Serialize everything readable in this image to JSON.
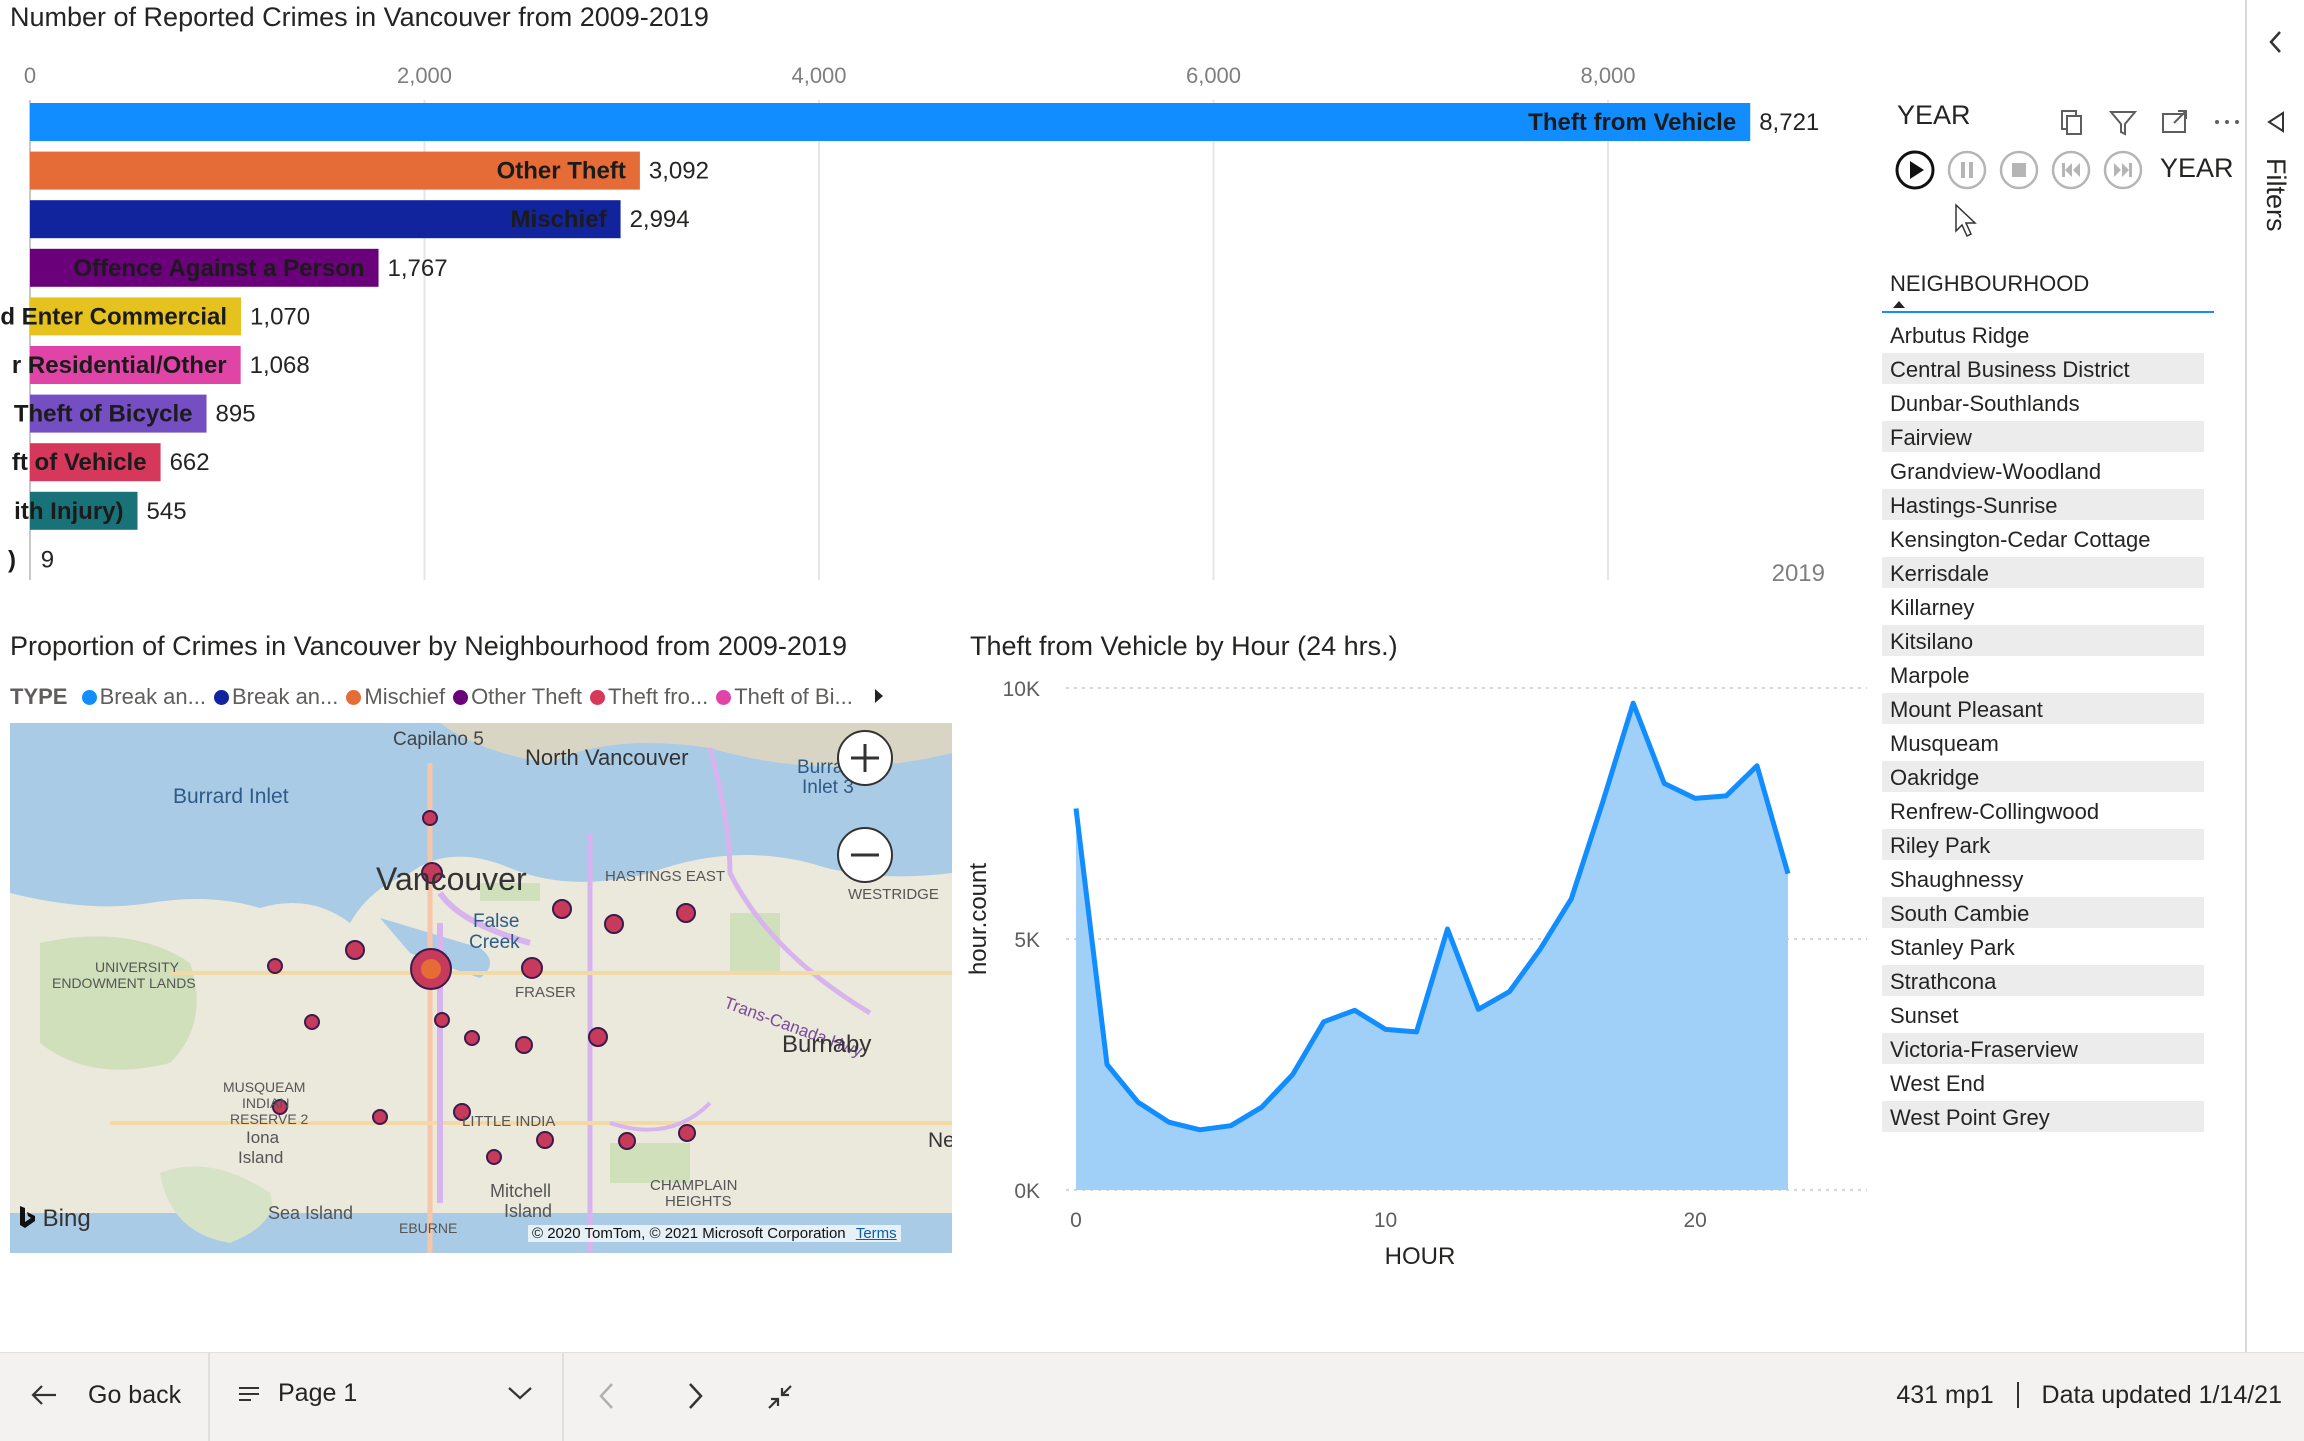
{
  "bar_chart": {
    "title": "Number of Reported Crimes in Vancouver from 2009-2019",
    "year_watermark": "2019",
    "axis_ticks": [
      "0",
      "2,000",
      "4,000",
      "6,000",
      "8,000"
    ]
  },
  "slicer_year": {
    "title": "YEAR",
    "play_label": "YEAR",
    "header_icons": [
      "copy-icon",
      "filter-icon",
      "focus-mode-icon",
      "more-options-icon"
    ],
    "buttons": [
      "play-icon",
      "pause-icon",
      "stop-icon",
      "previous-icon",
      "next-icon"
    ]
  },
  "neighbourhood": {
    "header": "NEIGHBOURHOOD",
    "items": [
      "Arbutus Ridge",
      "Central Business District",
      "Dunbar-Southlands",
      "Fairview",
      "Grandview-Woodland",
      "Hastings-Sunrise",
      "Kensington-Cedar Cottage",
      "Kerrisdale",
      "Killarney",
      "Kitsilano",
      "Marpole",
      "Mount Pleasant",
      "Musqueam",
      "Oakridge",
      "Renfrew-Collingwood",
      "Riley Park",
      "Shaughnessy",
      "South Cambie",
      "Stanley Park",
      "Strathcona",
      "Sunset",
      "Victoria-Fraserview",
      "West End",
      "West Point Grey"
    ]
  },
  "filters": {
    "label": "Filters"
  },
  "map_visual": {
    "title": "Proportion of Crimes in Vancouver by Neighbourhood from 2009-2019",
    "legend_title": "TYPE",
    "legend": [
      {
        "label": "Break an...",
        "color": "#118dff"
      },
      {
        "label": "Break an...",
        "color": "#12239e"
      },
      {
        "label": "Mischief",
        "color": "#e66c37"
      },
      {
        "label": "Other Theft",
        "color": "#6b007b"
      },
      {
        "label": "Theft fro...",
        "color": "#d6385b"
      },
      {
        "label": "Theft of Bi...",
        "color": "#e044a7"
      }
    ],
    "labels": {
      "capilano": "Capilano 5",
      "north_van": "North Vancouver",
      "burrard": "Burrard Inlet",
      "burrard3a": "Burra",
      "burrard3b": "Inlet 3",
      "vancouver": "Vancouver",
      "hastings_east": "HASTINGS EAST",
      "westridge": "WESTRIDGE",
      "false1": "False",
      "false2": "Creek",
      "ubc1": "UNIVERSITY",
      "ubc2": "ENDOWMENT LANDS",
      "fraser": "FRASER",
      "transcanada": "Trans-Canada Hwy",
      "burnaby": "Burnaby",
      "musq1": "MUSQUEAM",
      "musq2": "INDIAN",
      "musq3": "RESERVE 2",
      "iona1": "Iona",
      "iona2": "Island",
      "little_india": "LITTLE INDIA",
      "ne": "Ne",
      "mitchell1": "Mitchell",
      "mitchell2": "Island",
      "champlain1": "CHAMPLAIN",
      "champlain2": "HEIGHTS",
      "sea_island": "Sea Island",
      "eburne": "EBURNE"
    },
    "bing": "Bing",
    "copyright": "© 2020 TomTom, © 2021 Microsoft Corporation",
    "terms": "Terms"
  },
  "line_chart_meta": {
    "title": "Theft from Vehicle by Hour (24 hrs.)",
    "xlabel": "HOUR",
    "ylabel": "hour.count",
    "y_ticks": [
      "10K",
      "5K",
      "0K"
    ],
    "x_ticks": [
      "0",
      "10",
      "20"
    ]
  },
  "footer": {
    "go_back": "Go back",
    "page": "Page 1",
    "user": "431 mp1",
    "data_updated": "Data updated 1/14/21"
  },
  "chart_data": [
    {
      "type": "bar",
      "title": "Number of Reported Crimes in Vancouver from 2009-2019",
      "categories": [
        "Theft from Vehicle",
        "Other Theft",
        "Mischief",
        "Offence Against a Person",
        "d Enter Commercial",
        "r Residential/Other",
        "Theft of Bicycle",
        "ft of Vehicle",
        "ith Injury)",
        ")"
      ],
      "values": [
        8721,
        3092,
        2994,
        1767,
        1070,
        1068,
        895,
        662,
        545,
        9
      ],
      "value_labels": [
        "8,721",
        "3,092",
        "2,994",
        "1,767",
        "1,070",
        "1,068",
        "895",
        "662",
        "545",
        "9"
      ],
      "colors": [
        "#118dff",
        "#e66c37",
        "#12239e",
        "#6b007b",
        "#e6c21e",
        "#e044a7",
        "#744ec2",
        "#d6385b",
        "#197278",
        "#1aab40"
      ],
      "xlim": [
        0,
        8800
      ],
      "grid": true
    },
    {
      "type": "area",
      "title": "Theft from Vehicle by Hour (24 hrs.)",
      "xlabel": "HOUR",
      "ylabel": "hour.count",
      "x": [
        0,
        1,
        2,
        3,
        4,
        5,
        6,
        7,
        8,
        9,
        10,
        11,
        12,
        13,
        14,
        15,
        16,
        17,
        18,
        19,
        20,
        21,
        22,
        23
      ],
      "values": [
        7600,
        2500,
        1750,
        1350,
        1200,
        1280,
        1650,
        2300,
        3350,
        3580,
        3200,
        3150,
        5200,
        3600,
        3950,
        4800,
        5800,
        7700,
        9700,
        8100,
        7800,
        7850,
        8450,
        6300
      ],
      "ylim": [
        0,
        10000
      ],
      "color": "#118dff"
    }
  ]
}
